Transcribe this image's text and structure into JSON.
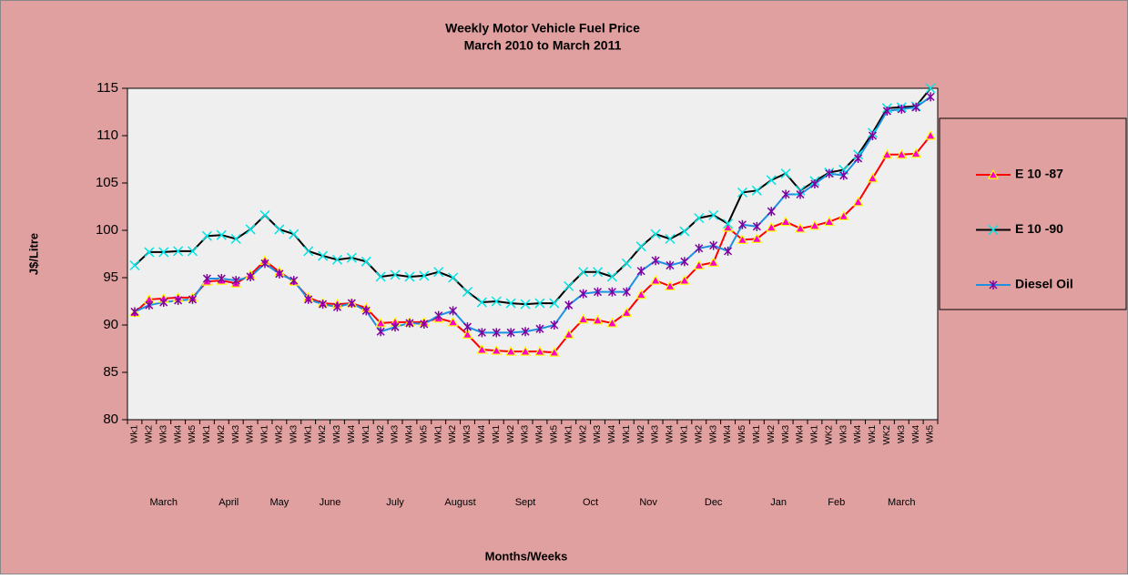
{
  "chart_data": {
    "type": "line",
    "title": "Weekly Motor Vehicle Fuel Price",
    "subtitle": "March 2010 to March 2011",
    "x_label": "Months/Weeks",
    "y_label": "J$/Litre",
    "groups": [
      {
        "label": "March",
        "weeks": [
          "Wk1",
          "Wk2",
          "Wk3",
          "Wk4",
          "Wk5"
        ]
      },
      {
        "label": "April",
        "weeks": [
          "Wk1",
          "Wk2",
          "Wk3",
          "Wk4"
        ]
      },
      {
        "label": "May",
        "weeks": [
          "Wk1",
          "Wk2",
          "Wk3"
        ]
      },
      {
        "label": "June",
        "weeks": [
          "Wk1",
          "Wk2",
          "Wk3",
          "Wk4"
        ]
      },
      {
        "label": "July",
        "weeks": [
          "Wk1",
          "Wk2",
          "Wk3",
          "Wk4",
          "Wk5"
        ]
      },
      {
        "label": "August",
        "weeks": [
          "Wk1",
          "Wk2",
          "Wk3",
          "Wk4"
        ]
      },
      {
        "label": "Sept",
        "weeks": [
          "Wk1",
          "Wk2",
          "Wk3",
          "Wk4",
          "Wk5"
        ]
      },
      {
        "label": "Oct",
        "weeks": [
          "Wk1",
          "Wk2",
          "Wk3",
          "Wk4"
        ]
      },
      {
        "label": "Nov",
        "weeks": [
          "Wk1",
          "Wk2",
          "Wk3",
          "Wk4"
        ]
      },
      {
        "label": "Dec",
        "weeks": [
          "Wk1",
          "Wk2",
          "Wk3",
          "Wk4",
          "Wk5"
        ]
      },
      {
        "label": "Jan",
        "weeks": [
          "Wk1",
          "Wk2",
          "Wk3",
          "Wk4"
        ]
      },
      {
        "label": "Feb",
        "weeks": [
          "Wk1",
          "WK2",
          "Wk3",
          "Wk4"
        ]
      },
      {
        "label": "March",
        "weeks": [
          "Wk1",
          "WK2",
          "Wk3",
          "Wk4",
          "Wk5"
        ]
      }
    ],
    "series": [
      {
        "name": "E 10 -87",
        "color": "#ff0000",
        "marker": "triangle",
        "marker_stroke": "#ffff00",
        "marker_fill": "#ff00cc",
        "values": [
          91.3,
          92.7,
          92.8,
          92.9,
          92.9,
          94.6,
          94.7,
          94.4,
          95.3,
          96.8,
          95.6,
          94.6,
          92.9,
          92.3,
          92.2,
          92.3,
          91.8,
          90.2,
          90.3,
          90.3,
          90.3,
          90.7,
          90.3,
          89.0,
          87.4,
          87.3,
          87.2,
          87.2,
          87.2,
          87.1,
          89.0,
          90.6,
          90.5,
          90.2,
          91.3,
          93.2,
          94.7,
          94.1,
          94.7,
          96.3,
          96.6,
          100.3,
          99.0,
          99.1,
          100.3,
          100.9,
          100.2,
          100.5,
          100.9,
          101.5,
          103.0,
          105.5,
          108.0,
          108.0,
          108.1,
          110.0
        ]
      },
      {
        "name": "E 10 -90",
        "color": "#000000",
        "marker": "x",
        "marker_stroke": "#00e5e5",
        "marker_fill": "none",
        "values": [
          96.3,
          97.7,
          97.7,
          97.8,
          97.8,
          99.4,
          99.5,
          99.1,
          100.1,
          101.6,
          100.1,
          99.6,
          97.8,
          97.3,
          96.9,
          97.1,
          96.7,
          95.1,
          95.3,
          95.1,
          95.2,
          95.6,
          95.0,
          93.5,
          92.4,
          92.5,
          92.3,
          92.2,
          92.3,
          92.3,
          94.1,
          95.6,
          95.6,
          95.1,
          96.5,
          98.3,
          99.6,
          99.1,
          99.9,
          101.3,
          101.6,
          100.7,
          104.0,
          104.2,
          105.3,
          106.0,
          104.2,
          105.2,
          106.1,
          106.4,
          108.0,
          110.3,
          112.9,
          113.0,
          113.1,
          115.0
        ]
      },
      {
        "name": "Diesel Oil",
        "color": "#1f8fe0",
        "marker": "star",
        "marker_stroke": "#8000a0",
        "marker_fill": "none",
        "values": [
          91.4,
          92.1,
          92.4,
          92.6,
          92.7,
          94.9,
          94.9,
          94.7,
          95.1,
          96.5,
          95.4,
          94.7,
          92.7,
          92.2,
          91.9,
          92.3,
          91.5,
          89.3,
          89.8,
          90.2,
          90.1,
          91.0,
          91.5,
          89.8,
          89.2,
          89.2,
          89.2,
          89.3,
          89.6,
          90.0,
          92.1,
          93.3,
          93.5,
          93.5,
          93.5,
          95.7,
          96.8,
          96.3,
          96.7,
          98.1,
          98.4,
          97.8,
          100.6,
          100.4,
          102.0,
          103.8,
          103.8,
          104.9,
          106.0,
          105.8,
          107.6,
          110.0,
          112.6,
          112.8,
          113.0,
          114.1
        ]
      }
    ],
    "ylim": [
      80,
      115
    ],
    "yticks": [
      80,
      85,
      90,
      95,
      100,
      105,
      110,
      115
    ],
    "grid": false,
    "legend": "right",
    "background": "#dfa09f",
    "plot_background": "#efefef"
  }
}
